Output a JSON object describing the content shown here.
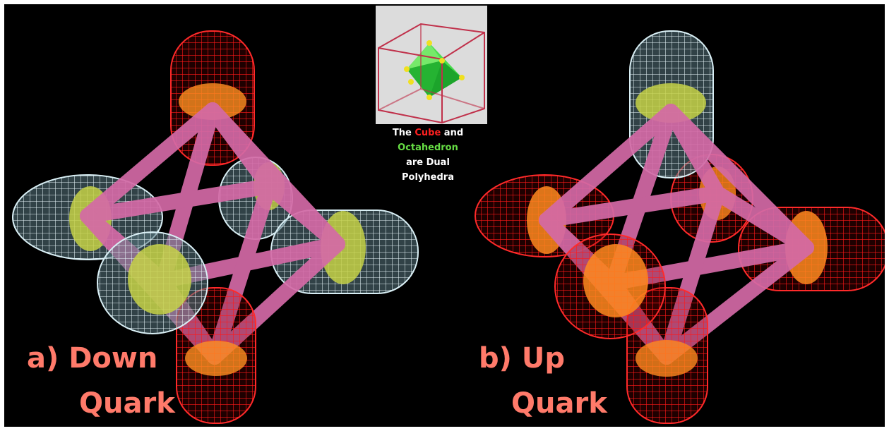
{
  "panels": [
    {
      "caption_line1": "a) Down",
      "caption_line2": "Quark"
    },
    {
      "caption_line1": "b) Up",
      "caption_line2": "Quark"
    }
  ],
  "inset": {
    "caption": {
      "the": "The",
      "cube": "Cube",
      "and": "and",
      "octahedron": "Octahedron",
      "are_dual": "are Dual",
      "polyhedra": "Polyhedra"
    }
  },
  "colors": {
    "background": "#000000",
    "red_lobe": "#ff2020",
    "blue_lobe": "#cfe6ee",
    "rod": "#d46aa6",
    "yellow_disk": "#c8d24a",
    "orange_disk": "#ff8a1e",
    "caption": "#ff7a6a",
    "inset_cube": "#c0304a",
    "inset_octahedron": "#44c24a",
    "inset_vertex": "#f0e020",
    "inset_cube_word": "#ff2020",
    "inset_octa_word": "#66dd44"
  }
}
